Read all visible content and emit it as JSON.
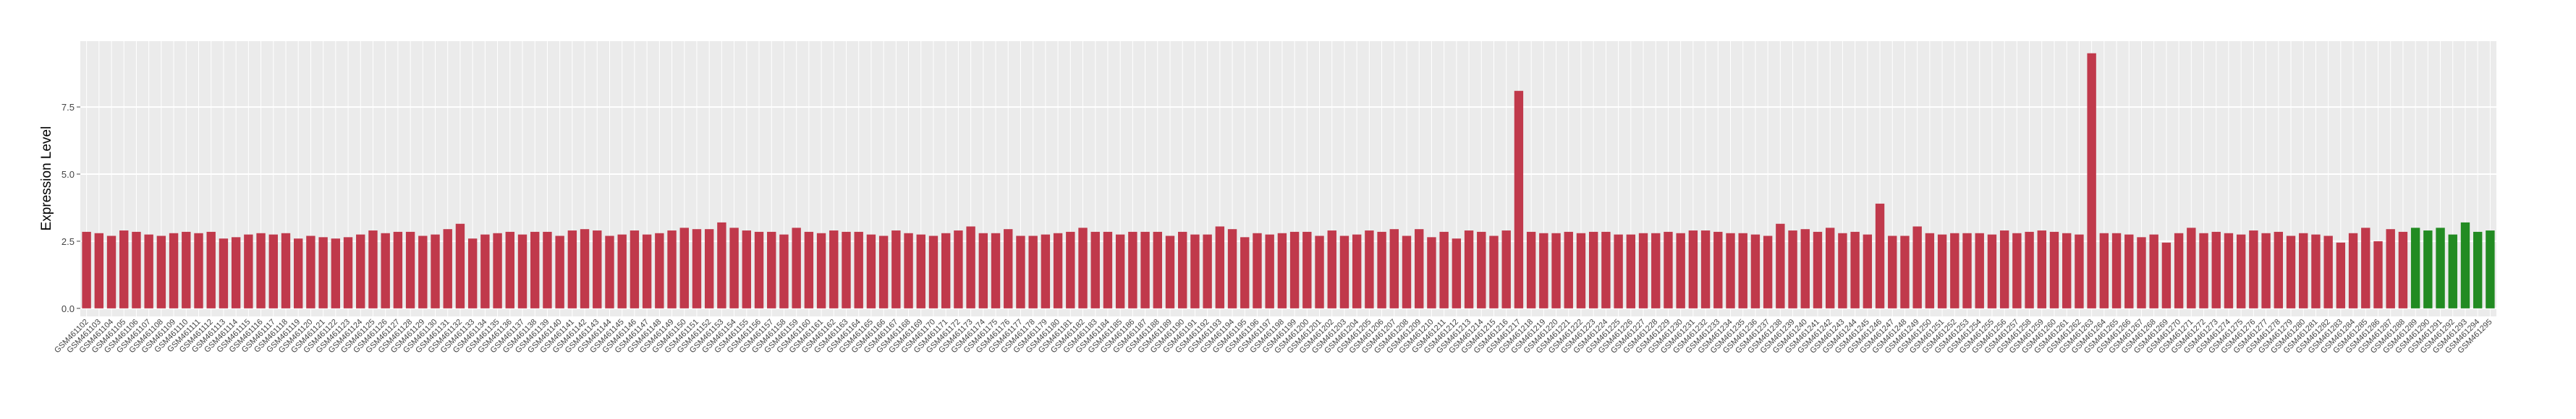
{
  "chart_data": {
    "type": "bar",
    "ylabel": "Expression Level",
    "categories": [
      "GSM461102",
      "GSM461103",
      "GSM461104",
      "GSM461105",
      "GSM461106",
      "GSM461107",
      "GSM461108",
      "GSM461109",
      "GSM461110",
      "GSM461111",
      "GSM461112",
      "GSM461113",
      "GSM461114",
      "GSM461115",
      "GSM461116",
      "GSM461117",
      "GSM461118",
      "GSM461119",
      "GSM461120",
      "GSM461121",
      "GSM461122",
      "GSM461123",
      "GSM461124",
      "GSM461125",
      "GSM461126",
      "GSM461127",
      "GSM461128",
      "GSM461129",
      "GSM461130",
      "GSM461131",
      "GSM461132",
      "GSM461133",
      "GSM461134",
      "GSM461135",
      "GSM461136",
      "GSM461137",
      "GSM461138",
      "GSM461139",
      "GSM461140",
      "GSM461141",
      "GSM461142",
      "GSM461143",
      "GSM461144",
      "GSM461145",
      "GSM461146",
      "GSM461147",
      "GSM461148",
      "GSM461149",
      "GSM461150",
      "GSM461151",
      "GSM461152",
      "GSM461153",
      "GSM461154",
      "GSM461155",
      "GSM461156",
      "GSM461157",
      "GSM461158",
      "GSM461159",
      "GSM461160",
      "GSM461161",
      "GSM461162",
      "GSM461163",
      "GSM461164",
      "GSM461165",
      "GSM461166",
      "GSM461167",
      "GSM461168",
      "GSM461169",
      "GSM461170",
      "GSM461171",
      "GSM461172",
      "GSM461173",
      "GSM461174",
      "GSM461175",
      "GSM461176",
      "GSM461177",
      "GSM461178",
      "GSM461179",
      "GSM461180",
      "GSM461181",
      "GSM461182",
      "GSM461183",
      "GSM461184",
      "GSM461185",
      "GSM461186",
      "GSM461187",
      "GSM461188",
      "GSM461189",
      "GSM461190",
      "GSM461191",
      "GSM461192",
      "GSM461193",
      "GSM461194",
      "GSM461195",
      "GSM461196",
      "GSM461197",
      "GSM461198",
      "GSM461199",
      "GSM461200",
      "GSM461201",
      "GSM461202",
      "GSM461203",
      "GSM461204",
      "GSM461205",
      "GSM461206",
      "GSM461207",
      "GSM461208",
      "GSM461209",
      "GSM461210",
      "GSM461211",
      "GSM461212",
      "GSM461213",
      "GSM461214",
      "GSM461215",
      "GSM461216",
      "GSM461217",
      "GSM461218",
      "GSM461219",
      "GSM461220",
      "GSM461221",
      "GSM461222",
      "GSM461223",
      "GSM461224",
      "GSM461225",
      "GSM461226",
      "GSM461227",
      "GSM461228",
      "GSM461229",
      "GSM461230",
      "GSM461231",
      "GSM461232",
      "GSM461233",
      "GSM461234",
      "GSM461235",
      "GSM461236",
      "GSM461237",
      "GSM461238",
      "GSM461239",
      "GSM461240",
      "GSM461241",
      "GSM461242",
      "GSM461243",
      "GSM461244",
      "GSM461245",
      "GSM461246",
      "GSM461247",
      "GSM461248",
      "GSM461249",
      "GSM461250",
      "GSM461251",
      "GSM461252",
      "GSM461253",
      "GSM461254",
      "GSM461255",
      "GSM461256",
      "GSM461257",
      "GSM461258",
      "GSM461259",
      "GSM461260",
      "GSM461261",
      "GSM461262",
      "GSM461263",
      "GSM461264",
      "GSM461265",
      "GSM461266",
      "GSM461267",
      "GSM461268",
      "GSM461269",
      "GSM461270",
      "GSM461271",
      "GSM461272",
      "GSM461273",
      "GSM461274",
      "GSM461275",
      "GSM461276",
      "GSM461277",
      "GSM461278",
      "GSM461279",
      "GSM461280",
      "GSM461281",
      "GSM461282",
      "GSM461283",
      "GSM461284",
      "GSM461285",
      "GSM461286",
      "GSM461287",
      "GSM461288",
      "GSM461289",
      "GSM461290",
      "GSM461291",
      "GSM461292",
      "GSM461293",
      "GSM461294",
      "GSM461295"
    ],
    "values": [
      2.85,
      2.8,
      2.7,
      2.9,
      2.85,
      2.75,
      2.7,
      2.8,
      2.85,
      2.8,
      2.85,
      2.6,
      2.65,
      2.75,
      2.8,
      2.75,
      2.8,
      2.6,
      2.7,
      2.65,
      2.6,
      2.65,
      2.75,
      2.9,
      2.8,
      2.85,
      2.85,
      2.7,
      2.75,
      2.95,
      3.15,
      2.6,
      2.75,
      2.8,
      2.85,
      2.75,
      2.85,
      2.85,
      2.7,
      2.9,
      2.95,
      2.9,
      2.7,
      2.75,
      2.9,
      2.75,
      2.8,
      2.9,
      3.0,
      2.95,
      2.95,
      3.2,
      3.0,
      2.9,
      2.85,
      2.85,
      2.75,
      3.0,
      2.85,
      2.8,
      2.9,
      2.85,
      2.85,
      2.75,
      2.7,
      2.9,
      2.8,
      2.75,
      2.7,
      2.8,
      2.9,
      3.05,
      2.8,
      2.8,
      2.95,
      2.7,
      2.7,
      2.75,
      2.8,
      2.85,
      3.0,
      2.85,
      2.85,
      2.75,
      2.85,
      2.85,
      2.85,
      2.7,
      2.85,
      2.75,
      2.75,
      3.05,
      2.95,
      2.65,
      2.8,
      2.75,
      2.8,
      2.85,
      2.85,
      2.7,
      2.9,
      2.7,
      2.75,
      2.9,
      2.85,
      2.95,
      2.7,
      2.95,
      2.65,
      2.85,
      2.6,
      2.9,
      2.85,
      2.7,
      2.9,
      8.1,
      2.85,
      2.8,
      2.8,
      2.85,
      2.8,
      2.85,
      2.85,
      2.75,
      2.75,
      2.8,
      2.8,
      2.85,
      2.8,
      2.9,
      2.9,
      2.85,
      2.8,
      2.8,
      2.75,
      2.7,
      3.15,
      2.9,
      2.95,
      2.85,
      3.0,
      2.8,
      2.85,
      2.75,
      3.9,
      2.7,
      2.7,
      3.05,
      2.8,
      2.75,
      2.8,
      2.8,
      2.8,
      2.75,
      2.9,
      2.8,
      2.85,
      2.9,
      2.85,
      2.8,
      2.75,
      9.5,
      2.8,
      2.8,
      2.75,
      2.65,
      2.75,
      2.45,
      2.8,
      3.0,
      2.8,
      2.85,
      2.8,
      2.75,
      2.9,
      2.8,
      2.85,
      2.7,
      2.8,
      2.75,
      2.7,
      2.45,
      2.8,
      3.0,
      2.5,
      2.95,
      2.85,
      3.0,
      2.9,
      3.0,
      2.75,
      3.2,
      2.85,
      2.9
    ],
    "colors": [
      "#c0394b",
      "#c0394b",
      "#c0394b",
      "#c0394b",
      "#c0394b",
      "#c0394b",
      "#c0394b",
      "#c0394b",
      "#c0394b",
      "#c0394b",
      "#c0394b",
      "#c0394b",
      "#c0394b",
      "#c0394b",
      "#c0394b",
      "#c0394b",
      "#c0394b",
      "#c0394b",
      "#c0394b",
      "#c0394b",
      "#c0394b",
      "#c0394b",
      "#c0394b",
      "#c0394b",
      "#c0394b",
      "#c0394b",
      "#c0394b",
      "#c0394b",
      "#c0394b",
      "#c0394b",
      "#c0394b",
      "#c0394b",
      "#c0394b",
      "#c0394b",
      "#c0394b",
      "#c0394b",
      "#c0394b",
      "#c0394b",
      "#c0394b",
      "#c0394b",
      "#c0394b",
      "#c0394b",
      "#c0394b",
      "#c0394b",
      "#c0394b",
      "#c0394b",
      "#c0394b",
      "#c0394b",
      "#c0394b",
      "#c0394b",
      "#c0394b",
      "#c0394b",
      "#c0394b",
      "#c0394b",
      "#c0394b",
      "#c0394b",
      "#c0394b",
      "#c0394b",
      "#c0394b",
      "#c0394b",
      "#c0394b",
      "#c0394b",
      "#c0394b",
      "#c0394b",
      "#c0394b",
      "#c0394b",
      "#c0394b",
      "#c0394b",
      "#c0394b",
      "#c0394b",
      "#c0394b",
      "#c0394b",
      "#c0394b",
      "#c0394b",
      "#c0394b",
      "#c0394b",
      "#c0394b",
      "#c0394b",
      "#c0394b",
      "#c0394b",
      "#c0394b",
      "#c0394b",
      "#c0394b",
      "#c0394b",
      "#c0394b",
      "#c0394b",
      "#c0394b",
      "#c0394b",
      "#c0394b",
      "#c0394b",
      "#c0394b",
      "#c0394b",
      "#c0394b",
      "#c0394b",
      "#c0394b",
      "#c0394b",
      "#c0394b",
      "#c0394b",
      "#c0394b",
      "#c0394b",
      "#c0394b",
      "#c0394b",
      "#c0394b",
      "#c0394b",
      "#c0394b",
      "#c0394b",
      "#c0394b",
      "#c0394b",
      "#c0394b",
      "#c0394b",
      "#c0394b",
      "#c0394b",
      "#c0394b",
      "#c0394b",
      "#c0394b",
      "#c0394b",
      "#c0394b",
      "#c0394b",
      "#c0394b",
      "#c0394b",
      "#c0394b",
      "#c0394b",
      "#c0394b",
      "#c0394b",
      "#c0394b",
      "#c0394b",
      "#c0394b",
      "#c0394b",
      "#c0394b",
      "#c0394b",
      "#c0394b",
      "#c0394b",
      "#c0394b",
      "#c0394b",
      "#c0394b",
      "#c0394b",
      "#c0394b",
      "#c0394b",
      "#c0394b",
      "#c0394b",
      "#c0394b",
      "#c0394b",
      "#c0394b",
      "#c0394b",
      "#c0394b",
      "#c0394b",
      "#c0394b",
      "#c0394b",
      "#c0394b",
      "#c0394b",
      "#c0394b",
      "#c0394b",
      "#c0394b",
      "#c0394b",
      "#c0394b",
      "#c0394b",
      "#c0394b",
      "#c0394b",
      "#c0394b",
      "#c0394b",
      "#c0394b",
      "#c0394b",
      "#c0394b",
      "#c0394b",
      "#c0394b",
      "#c0394b",
      "#c0394b",
      "#c0394b",
      "#c0394b",
      "#c0394b",
      "#c0394b",
      "#c0394b",
      "#c0394b",
      "#c0394b",
      "#c0394b",
      "#c0394b",
      "#c0394b",
      "#c0394b",
      "#c0394b",
      "#c0394b",
      "#c0394b",
      "#c0394b",
      "#c0394b",
      "#c0394b",
      "#c0394b",
      "#c0394b",
      "#c0394b",
      "#228b22",
      "#228b22",
      "#228b22",
      "#228b22",
      "#228b22",
      "#228b22",
      "#228b22",
      "#228b22",
      "#228b22"
    ],
    "ylim": [
      -0.3,
      9.95
    ],
    "yticks": [
      {
        "value": 0,
        "label": "0.0"
      },
      2.5,
      {
        "value": 5,
        "label": "5.0"
      },
      7.5
    ],
    "grid": true
  }
}
